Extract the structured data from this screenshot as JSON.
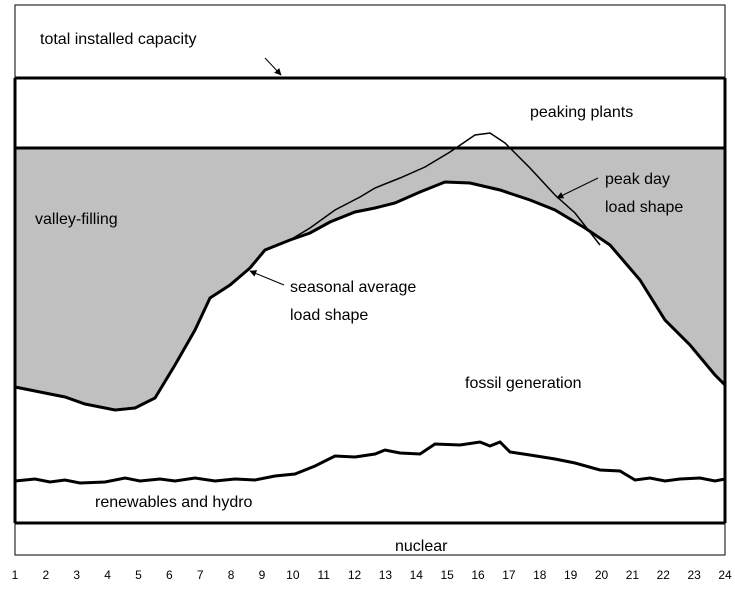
{
  "labels": {
    "total_capacity": "total installed capacity",
    "peaking": "peaking plants",
    "valley": "valley-filling",
    "peak_day_1": "peak day",
    "peak_day_2": "load shape",
    "seasonal_1": "seasonal average",
    "seasonal_2": "load shape",
    "fossil": "fossil generation",
    "renewables": "renewables and hydro",
    "nuclear": "nuclear"
  },
  "x_axis": {
    "ticks": [
      "1",
      "2",
      "3",
      "4",
      "5",
      "6",
      "7",
      "8",
      "9",
      "10",
      "11",
      "12",
      "13",
      "14",
      "15",
      "16",
      "17",
      "18",
      "19",
      "20",
      "21",
      "22",
      "23",
      "24"
    ]
  }
}
